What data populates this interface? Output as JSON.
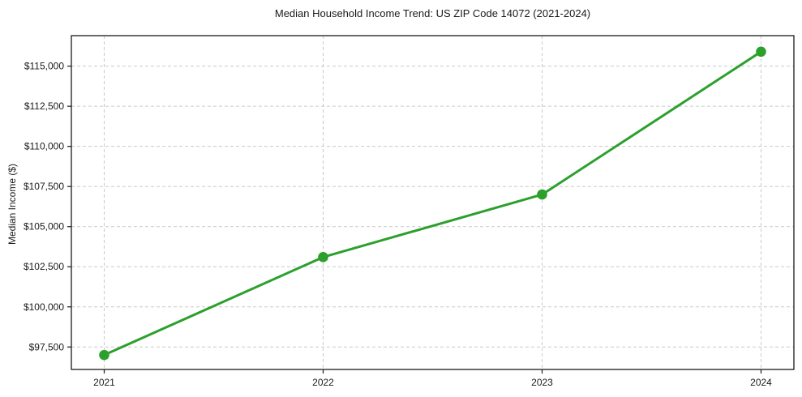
{
  "chart_data": {
    "type": "line",
    "title": "Median Household Income Trend: US ZIP Code 14072 (2021-2024)",
    "xlabel": "",
    "ylabel": "Median Income ($)",
    "x": [
      2021,
      2022,
      2023,
      2024
    ],
    "x_tick_labels": [
      "2021",
      "2022",
      "2023",
      "2024"
    ],
    "series": [
      {
        "name": "Median Household Income",
        "values": [
          97000,
          103100,
          107000,
          115900
        ],
        "color": "#2ca02c",
        "marker": "circle",
        "line_width": 3
      }
    ],
    "y_ticks": [
      97500,
      100000,
      102500,
      105000,
      107500,
      110000,
      112500,
      115000
    ],
    "y_tick_labels": [
      "$97,500",
      "$100,000",
      "$102,500",
      "$105,000",
      "$107,500",
      "$110,000",
      "$112,500",
      "$115,000"
    ],
    "ylim": [
      96100,
      116900
    ],
    "xlim": [
      2020.85,
      2024.15
    ],
    "grid": true,
    "grid_style": "dashed",
    "grid_color": "#c9c9c9",
    "axis_color": "#1a1a1a",
    "background": "#ffffff",
    "legend": "none"
  }
}
